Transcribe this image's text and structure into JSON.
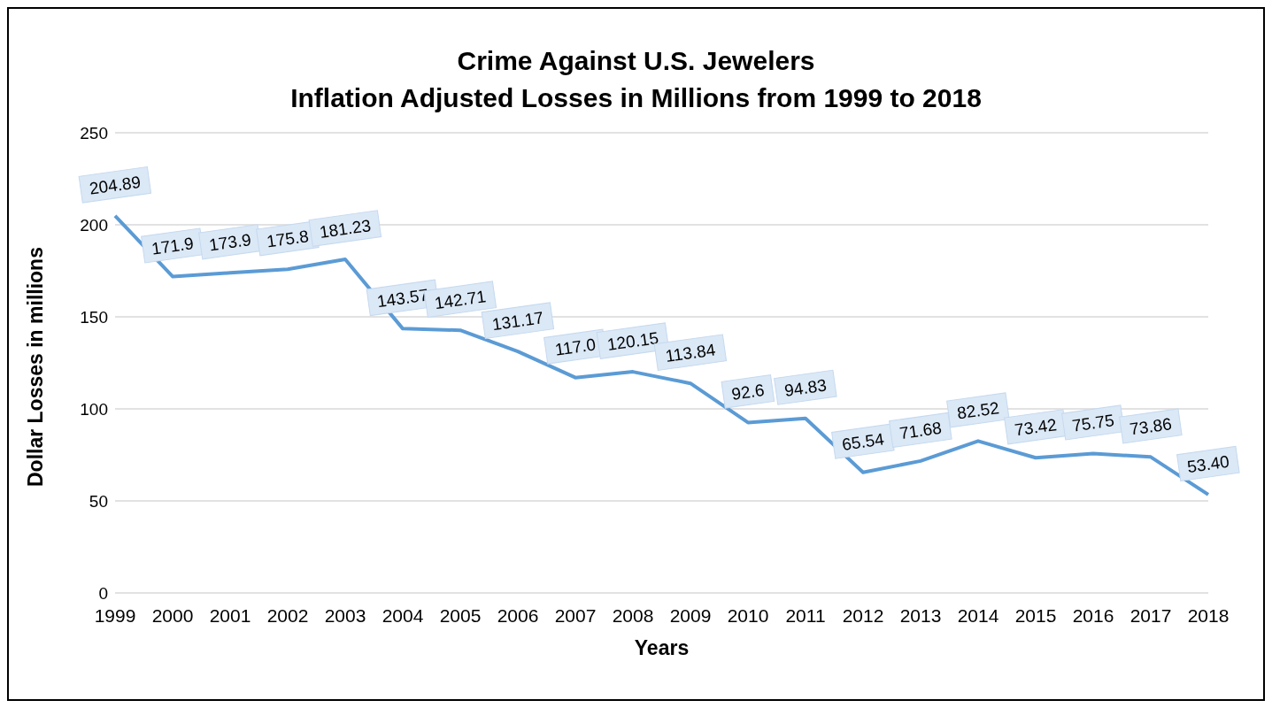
{
  "chart_data": {
    "type": "line",
    "title": "Crime Against U.S. Jewelers",
    "subtitle": "Inflation Adjusted Losses in Millions from 1999 to 2018",
    "xlabel": "Years",
    "ylabel": "Dollar Losses in millions",
    "categories": [
      "1999",
      "2000",
      "2001",
      "2002",
      "2003",
      "2004",
      "2005",
      "2006",
      "2007",
      "2008",
      "2009",
      "2010",
      "2011",
      "2012",
      "2013",
      "2014",
      "2015",
      "2016",
      "2017",
      "2018"
    ],
    "series": [
      {
        "color": "#5b9bd5",
        "values": [
          204.89,
          171.9,
          173.9,
          175.8,
          181.23,
          143.57,
          142.71,
          131.17,
          117.0,
          120.15,
          113.84,
          92.6,
          94.83,
          65.54,
          71.68,
          82.52,
          73.42,
          75.75,
          73.86,
          53.4
        ],
        "value_labels": [
          "204.89",
          "171.9",
          "173.9",
          "175.8",
          "181.23",
          "143.57",
          "142.71",
          "131.17",
          "117.0",
          "120.15",
          "113.84",
          "92.6",
          "94.83",
          "65.54",
          "71.68",
          "82.52",
          "73.42",
          "75.75",
          "73.86",
          "53.40"
        ]
      }
    ],
    "ylim": [
      0,
      250
    ],
    "yticks": [
      0,
      50,
      100,
      150,
      200,
      250
    ],
    "grid": "y",
    "legend": false,
    "marker": "none",
    "line_style": "solid"
  }
}
